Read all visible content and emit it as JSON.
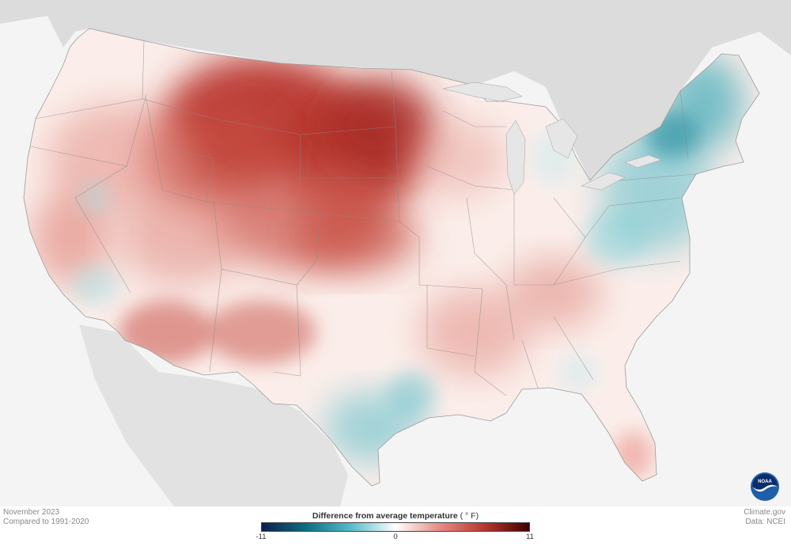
{
  "map": {
    "region": "Contiguous United States",
    "metric": "Difference from average temperature"
  },
  "caption": {
    "period": "November 2023",
    "baseline": "Compared to 1991-2020"
  },
  "credit": {
    "site": "Climate.gov",
    "data": "Data: NCEI"
  },
  "legend": {
    "title": "Difference from average temperature",
    "unit": "( ° F)",
    "min_label": "-11",
    "mid_label": "0",
    "max_label": "11",
    "colors": [
      "#0a1f4e",
      "#0e6f7e",
      "#57bcc9",
      "#ffffff",
      "#e68a82",
      "#b8372f",
      "#3d0000"
    ]
  },
  "logo": {
    "text": "NOAA",
    "icon": "noaa-logo-icon",
    "colors": {
      "ring": "#1e5fa8",
      "inner": "#0c2d6b",
      "wave": "#ffffff"
    }
  }
}
